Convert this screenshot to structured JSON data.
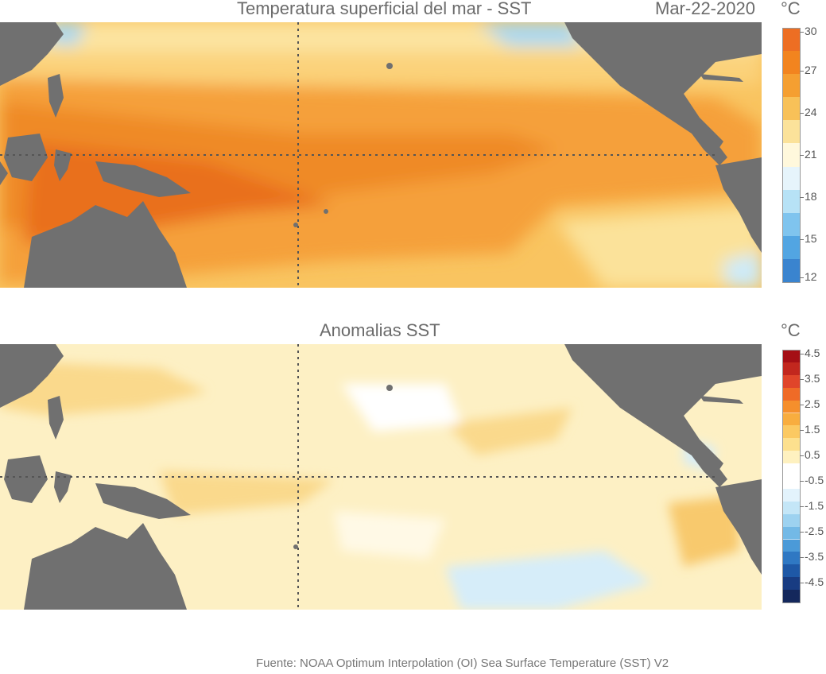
{
  "top_panel": {
    "title": "Temperatura superficial del mar - SST",
    "date": "Mar-22-2020",
    "unit": "°C",
    "colorbar": {
      "ticks": [
        "30",
        "27",
        "24",
        "21",
        "18",
        "15",
        "12"
      ],
      "colors": [
        "#ed6e23",
        "#f2841f",
        "#f59f31",
        "#f8c158",
        "#fbe29a",
        "#fff8dc",
        "#e6f4fb",
        "#b7e2f6",
        "#7fc4ee",
        "#52a5e2",
        "#3a84cf"
      ]
    },
    "colors": {
      "land": "#707070",
      "ocean_warm": "#f5a03a",
      "ocean_hot": "#ef7a22",
      "ocean_mid": "#f9c460",
      "ocean_cool": "#fce4a0",
      "ocean_cold": "#a8d8f2"
    }
  },
  "bottom_panel": {
    "title": "Anomalias SST",
    "unit": "°C",
    "colorbar": {
      "ticks": [
        "4.5",
        "3.5",
        "2.5",
        "1.5",
        "0.5",
        "-0.5",
        "-1.5",
        "-2.5",
        "-3.5",
        "-4.5"
      ],
      "colors": [
        "#a50f15",
        "#c2271e",
        "#e0452a",
        "#ef6b27",
        "#f58f2c",
        "#f8ad3f",
        "#fbc962",
        "#fde08e",
        "#fef1c0",
        "#ffffff",
        "#ffffff",
        "#e3f3fc",
        "#c4e6f7",
        "#9dd2f0",
        "#73b9e6",
        "#4b9ad8",
        "#2f78c3",
        "#1e58a6",
        "#183c82",
        "#14285c"
      ]
    },
    "colors": {
      "land": "#707070",
      "ocean_base": "#fdf0c4",
      "ocean_warm": "#fad98c",
      "ocean_neutral": "#ffffff",
      "ocean_cool": "#d6edf9"
    }
  },
  "source": "Fuente: NOAA Optimum Interpolation (OI) Sea Surface Temperature (SST) V2"
}
